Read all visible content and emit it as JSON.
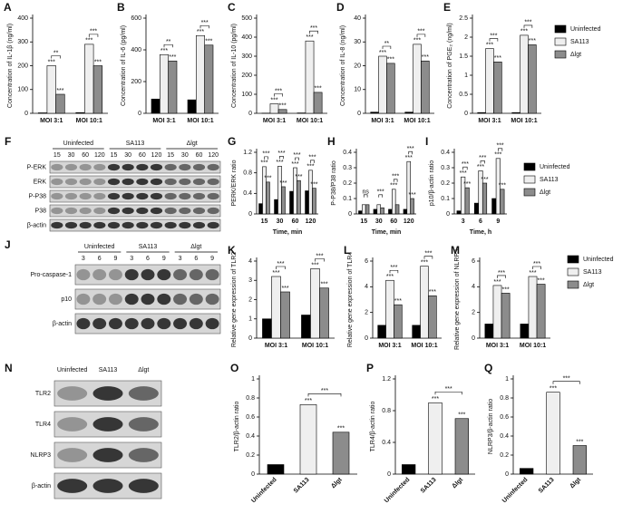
{
  "chart_data": [
    {
      "type": "bar",
      "panel": "A",
      "ylabel": "Concentration of IL-1β (ng/ml)",
      "categories": [
        "MOI 3:1",
        "MOI 10:1"
      ],
      "ylim": [
        0,
        400
      ],
      "yticks": [
        0,
        100,
        200,
        300,
        400
      ],
      "series": [
        {
          "color": "#000000",
          "values": [
            2,
            3
          ]
        },
        {
          "color": "#efefef",
          "values": [
            200,
            290
          ],
          "sig": [
            "***",
            "***"
          ]
        },
        {
          "color": "#8c8c8c",
          "values": [
            80,
            200
          ],
          "sig": [
            "***",
            "***"
          ]
        }
      ],
      "bracket_labels": [
        "**",
        "***"
      ]
    },
    {
      "type": "bar",
      "panel": "B",
      "ylabel": "Concentration of IL-6 (pg/ml)",
      "categories": [
        "MOI 3:1",
        "MOI 10:1"
      ],
      "ylim": [
        0,
        600
      ],
      "yticks": [
        0,
        200,
        400,
        600
      ],
      "series": [
        {
          "color": "#000000",
          "values": [
            90,
            85
          ]
        },
        {
          "color": "#efefef",
          "values": [
            370,
            490
          ],
          "sig": [
            "***",
            "***"
          ]
        },
        {
          "color": "#8c8c8c",
          "values": [
            330,
            430
          ],
          "sig": [
            "***",
            "***"
          ]
        }
      ],
      "bracket_labels": [
        "**",
        "***"
      ]
    },
    {
      "type": "bar",
      "panel": "C",
      "ylabel": "Concentration of IL-10 (pg/ml)",
      "categories": [
        "MOI 3:1",
        "MOI 10:1"
      ],
      "ylim": [
        0,
        500
      ],
      "yticks": [
        0,
        100,
        200,
        300,
        400,
        500
      ],
      "series": [
        {
          "color": "#000000",
          "values": [
            1,
            2
          ]
        },
        {
          "color": "#efefef",
          "values": [
            50,
            380
          ],
          "sig": [
            "***",
            "***"
          ]
        },
        {
          "color": "#8c8c8c",
          "values": [
            20,
            110
          ],
          "sig": [
            "***",
            "***"
          ]
        }
      ],
      "bracket_labels": [
        "***",
        "***"
      ]
    },
    {
      "type": "bar",
      "panel": "D",
      "ylabel": "Concentration of IL-8 (ng/ml)",
      "categories": [
        "MOI 3:1",
        "MOI 10:1"
      ],
      "ylim": [
        0,
        40
      ],
      "yticks": [
        0,
        10,
        20,
        30,
        40
      ],
      "series": [
        {
          "color": "#000000",
          "values": [
            0.5,
            0.5
          ]
        },
        {
          "color": "#efefef",
          "values": [
            24,
            29
          ],
          "sig": [
            "***",
            "***"
          ]
        },
        {
          "color": "#8c8c8c",
          "values": [
            21,
            22
          ],
          "sig": [
            "***",
            "***"
          ]
        }
      ],
      "bracket_labels": [
        "**",
        "***"
      ]
    },
    {
      "type": "bar",
      "panel": "E",
      "ylabel": "Concentration of PGE₂ (ng/ml)",
      "categories": [
        "MOI 3:1",
        "MOI 10:1"
      ],
      "ylim": [
        0,
        2.5
      ],
      "yticks": [
        0,
        0.5,
        1,
        1.5,
        2,
        2.5
      ],
      "legend": "right",
      "series": [
        {
          "name": "Uninfected",
          "color": "#000000",
          "values": [
            0.02,
            0.02
          ]
        },
        {
          "name": "SA113",
          "color": "#efefef",
          "values": [
            1.7,
            2.05
          ],
          "sig": [
            "***",
            "***"
          ]
        },
        {
          "name": "Δlgt",
          "color": "#8c8c8c",
          "values": [
            1.35,
            1.8
          ],
          "sig": [
            "***",
            "***"
          ]
        }
      ],
      "bracket_labels": [
        "***",
        "***"
      ]
    },
    {
      "type": "bar",
      "panel": "G",
      "ylabel": "PERK/ERK ratio",
      "xlabel": "Time, min",
      "categories": [
        "15",
        "30",
        "60",
        "120"
      ],
      "ylim": [
        0,
        1.2
      ],
      "yticks": [
        0,
        0.4,
        0.8,
        1.2
      ],
      "series": [
        {
          "color": "#000000",
          "values": [
            0.2,
            0.28,
            0.44,
            0.45
          ]
        },
        {
          "color": "#efefef",
          "values": [
            0.92,
            0.93,
            0.9,
            0.85
          ],
          "sig": [
            "***",
            "***",
            "***",
            "***"
          ]
        },
        {
          "color": "#8c8c8c",
          "values": [
            0.62,
            0.53,
            0.65,
            0.5
          ],
          "sig": [
            "***",
            "***",
            "***",
            "***"
          ]
        }
      ],
      "bracket_labels": [
        "***",
        "***",
        "***",
        "***"
      ]
    },
    {
      "type": "bar",
      "panel": "H",
      "ylabel": "P-P38/P38 ratio",
      "xlabel": "Time, min",
      "categories": [
        "15",
        "30",
        "60",
        "120"
      ],
      "ylim": [
        0,
        0.4
      ],
      "yticks": [
        0,
        0.1,
        0.2,
        0.3,
        0.4
      ],
      "series": [
        {
          "color": "#000000",
          "values": [
            0.02,
            0.03,
            0.03,
            0.03
          ]
        },
        {
          "color": "#efefef",
          "values": [
            0.06,
            0.06,
            0.16,
            0.34
          ],
          "sig": [
            null,
            null,
            "***",
            "***"
          ]
        },
        {
          "color": "#8c8c8c",
          "values": [
            0.06,
            0.04,
            0.06,
            0.1
          ],
          "sig": [
            null,
            null,
            null,
            "***"
          ]
        }
      ],
      "bracket_labels": [
        "ns",
        "***",
        "***",
        "***"
      ]
    },
    {
      "type": "bar",
      "panel": "I",
      "ylabel": "p10/β-actin ratio",
      "xlabel": "Time, h",
      "categories": [
        "3",
        "6",
        "9"
      ],
      "ylim": [
        0,
        0.4
      ],
      "yticks": [
        0,
        0.1,
        0.2,
        0.3,
        0.4
      ],
      "legend": "right",
      "series": [
        {
          "name": "Uninfected",
          "color": "#000000",
          "values": [
            0.02,
            0.07,
            0.1
          ]
        },
        {
          "name": "SA113",
          "color": "#efefef",
          "values": [
            0.24,
            0.28,
            0.36
          ],
          "sig": [
            "***",
            "***",
            "***"
          ]
        },
        {
          "name": "Δlgt",
          "color": "#8c8c8c",
          "values": [
            0.17,
            0.2,
            0.16
          ],
          "sig": [
            "***",
            "***",
            "***"
          ]
        }
      ],
      "bracket_labels": [
        "***",
        "***",
        "***"
      ]
    },
    {
      "type": "bar",
      "panel": "K",
      "ylabel": "Relative gene expression of TLR2",
      "categories": [
        "MOI 3:1",
        "MOI 10:1"
      ],
      "ylim": [
        0,
        4
      ],
      "yticks": [
        0,
        1,
        2,
        3,
        4
      ],
      "series": [
        {
          "color": "#000000",
          "values": [
            1,
            1.2
          ]
        },
        {
          "color": "#efefef",
          "values": [
            3.2,
            3.6
          ],
          "sig": [
            "***",
            "***"
          ]
        },
        {
          "color": "#8c8c8c",
          "values": [
            2.4,
            2.6
          ],
          "sig": [
            "***",
            "***"
          ]
        }
      ],
      "bracket_labels": [
        "***",
        "***"
      ]
    },
    {
      "type": "bar",
      "panel": "L",
      "ylabel": "Relative gene expression of TLR4",
      "categories": [
        "MOI 3:1",
        "MOI 10:1"
      ],
      "ylim": [
        0,
        6
      ],
      "yticks": [
        0,
        2,
        4,
        6
      ],
      "series": [
        {
          "color": "#000000",
          "values": [
            1,
            1
          ]
        },
        {
          "color": "#efefef",
          "values": [
            4.5,
            5.6
          ],
          "sig": [
            "***",
            "***"
          ]
        },
        {
          "color": "#8c8c8c",
          "values": [
            2.6,
            3.3
          ],
          "sig": [
            "***",
            "***"
          ]
        }
      ],
      "bracket_labels": [
        "***",
        "***"
      ]
    },
    {
      "type": "bar",
      "panel": "M",
      "ylabel": "Relative gene expression of NLRP3",
      "categories": [
        "MOI 3:1",
        "MOI 10:1"
      ],
      "ylim": [
        0,
        6
      ],
      "yticks": [
        0,
        2,
        4,
        6
      ],
      "legend": "right",
      "series": [
        {
          "name": "Uninfected",
          "color": "#000000",
          "values": [
            1.1,
            1.1
          ]
        },
        {
          "name": "SA113",
          "color": "#efefef",
          "values": [
            4.1,
            4.8
          ],
          "sig": [
            "***",
            "***"
          ]
        },
        {
          "name": "Δlgt",
          "color": "#8c8c8c",
          "values": [
            3.5,
            4.2
          ],
          "sig": [
            "***",
            "***"
          ]
        }
      ],
      "bracket_labels": [
        "***",
        "***"
      ]
    },
    {
      "type": "bar",
      "panel": "O",
      "ylabel": "TLR2/β-actin ratio",
      "categories": [
        "Uninfected",
        "SA113",
        "Δlgt"
      ],
      "values": [
        0.1,
        0.73,
        0.44
      ],
      "colors": [
        "#000000",
        "#efefef",
        "#8c8c8c"
      ],
      "sig": [
        null,
        "***",
        "***"
      ],
      "bracket_label": "***",
      "ylim": [
        0,
        1
      ],
      "yticks": [
        0,
        0.2,
        0.4,
        0.6,
        0.8,
        1
      ]
    },
    {
      "type": "bar",
      "panel": "P",
      "ylabel": "TLR4/β-actin ratio",
      "categories": [
        "Uninfected",
        "SA113",
        "Δlgt"
      ],
      "values": [
        0.12,
        0.9,
        0.7
      ],
      "colors": [
        "#000000",
        "#efefef",
        "#8c8c8c"
      ],
      "sig": [
        null,
        "***",
        "***"
      ],
      "bracket_label": "***",
      "ylim": [
        0,
        1.2
      ],
      "yticks": [
        0,
        0.4,
        0.8,
        1.2
      ]
    },
    {
      "type": "bar",
      "panel": "Q",
      "ylabel": "NLRP3/β-actin ratio",
      "categories": [
        "Uninfected",
        "SA113",
        "Δlgt"
      ],
      "values": [
        0.06,
        0.86,
        0.3
      ],
      "colors": [
        "#000000",
        "#efefef",
        "#8c8c8c"
      ],
      "sig": [
        null,
        "***",
        "***"
      ],
      "bracket_label": "***",
      "ylim": [
        0,
        1
      ],
      "yticks": [
        0,
        0.2,
        0.4,
        0.6,
        0.8,
        1
      ]
    }
  ],
  "blots": [
    {
      "panel": "F",
      "groups": [
        "Uninfected",
        "SA113",
        "Δlgt"
      ],
      "lanes": [
        "15",
        "30",
        "60",
        "120"
      ],
      "rows": [
        "P-ERK",
        "ERK",
        "P-P38",
        "P38",
        "β-actin"
      ]
    },
    {
      "panel": "J",
      "groups": [
        "Uninfected",
        "SA113",
        "Δlgt"
      ],
      "lanes": [
        "3",
        "6",
        "9"
      ],
      "rows": [
        "Pro-caspase-1",
        "p10",
        "β-actin"
      ]
    },
    {
      "panel": "N",
      "groups": [
        "Uninfected",
        "SA113",
        "Δlgt"
      ],
      "rows": [
        "TLR2",
        "TLR4",
        "NLRP3",
        "β-actin"
      ]
    }
  ]
}
